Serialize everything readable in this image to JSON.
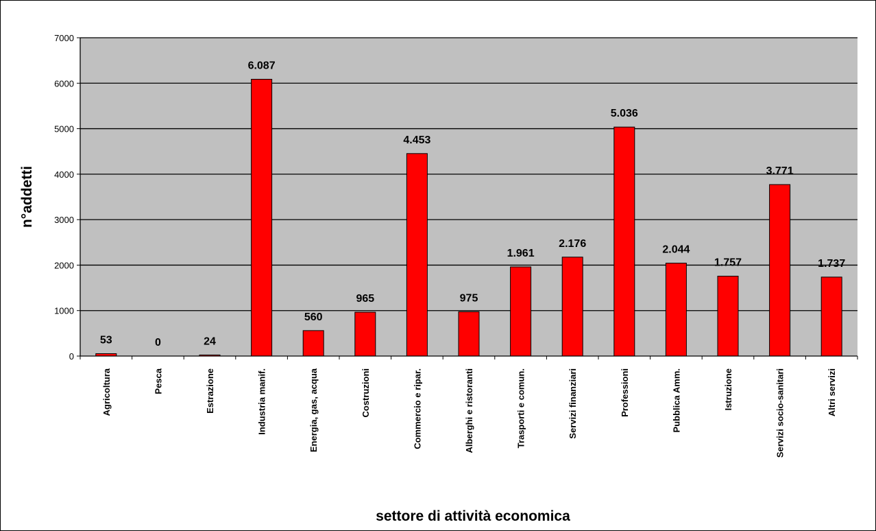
{
  "chart_data": {
    "type": "bar",
    "title": "",
    "xlabel": "settore di attività economica",
    "ylabel": "n°addetti",
    "ylim": [
      0,
      7000
    ],
    "yticks": [
      0,
      1000,
      2000,
      3000,
      4000,
      5000,
      6000,
      7000
    ],
    "grid": true,
    "legend": "none",
    "bar_color": "#FF0000",
    "plot_background": "#C0C0C0",
    "categories": [
      "Agricoltura",
      "Pesca",
      "Estrazione",
      "Industria manif.",
      "Energia, gas, acqua",
      "Costruzioni",
      "Commercio e ripar.",
      "Alberghi e ristoranti",
      "Trasporti e comun.",
      "Servizi finanziari",
      "Professioni",
      "Pubblica Amm.",
      "Istruzione",
      "Servizi socio-sanitari",
      "Altri servizi"
    ],
    "values": [
      53,
      0,
      24,
      6087,
      560,
      965,
      4453,
      975,
      1961,
      2176,
      5036,
      2044,
      1757,
      3771,
      1737
    ],
    "data_labels": [
      "53",
      "0",
      "24",
      "6.087",
      "560",
      "965",
      "4.453",
      "975",
      "1.961",
      "2.176",
      "5.036",
      "2.044",
      "1.757",
      "3.771",
      "1.737"
    ]
  }
}
